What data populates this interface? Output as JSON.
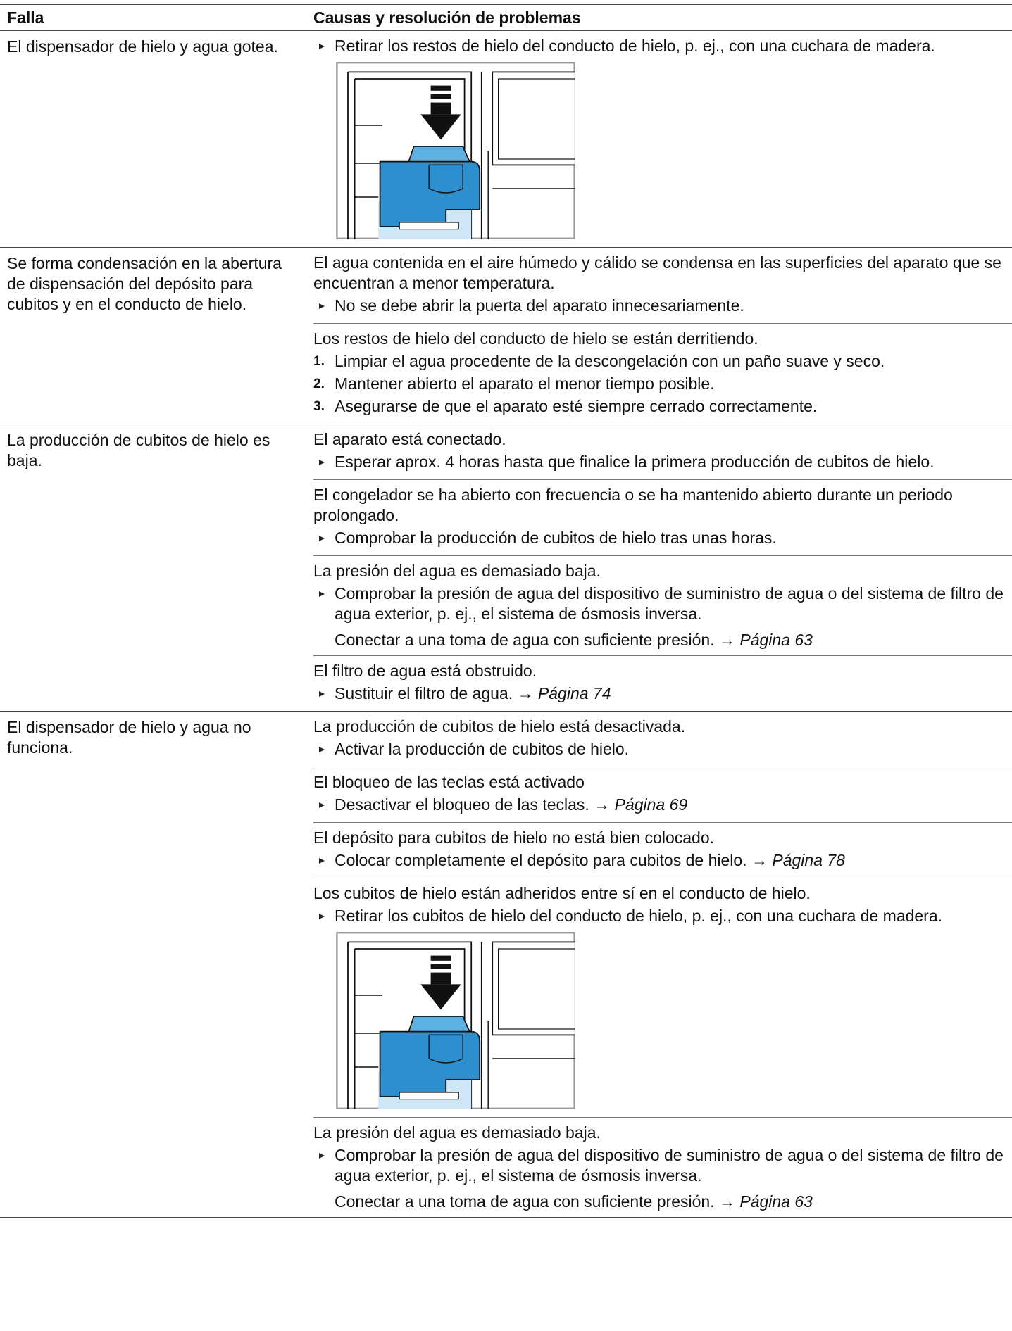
{
  "table": {
    "headers": [
      "Falla",
      "Causas y resolución de problemas"
    ],
    "rows": [
      {
        "fault": "El dispensador de hielo y agua gotea.",
        "causes": [
          {
            "actions": [
              "Retirar los restos de hielo del conducto de hielo, p. ej., con una cuchara de madera."
            ]
          }
        ]
      },
      {
        "fault": "Se forma condensación en la abertura de dispensación del depósito para cubitos y en el conducto de hielo.",
        "causes": [
          {
            "intro": "El agua contenida en el aire húmedo y cálido se condensa en las superficies del aparato que se encuentran a menor temperatura.",
            "actions": [
              "No se debe abrir la puerta del aparato innecesariamente."
            ]
          },
          {
            "intro": "Los restos de hielo del conducto de hielo se están derritiendo.",
            "steps": [
              {
                "number": "1.",
                "text": "Limpiar el agua procedente de la descongelación con un paño suave y seco."
              },
              {
                "number": "2.",
                "text": "Mantener abierto el aparato el menor tiempo posible."
              },
              {
                "number": "3.",
                "text": "Asegurarse de que el aparato esté siempre cerrado correctamente."
              }
            ]
          }
        ]
      },
      {
        "fault": "La producción de cubitos de hielo es baja.",
        "causes": [
          {
            "intro": "El aparato está conectado.",
            "actions": [
              "Esperar aprox. 4 horas hasta que finalice la primera producción de cubitos de hielo."
            ]
          },
          {
            "intro": "El congelador se ha abierto con frecuencia o se ha mantenido abierto durante un periodo prolongado.",
            "actions": [
              "Comprobar la producción de cubitos de hielo tras unas horas."
            ]
          },
          {
            "intro": "La presión del agua es demasiado baja.",
            "actions": [
              "Comprobar la presión de agua del dispositivo de suministro de agua o del sistema de filtro de agua exterior, p. ej., el sistema de ósmosis inversa."
            ],
            "note": {
              "text": "Conectar a una toma de agua con suficiente presión. →",
              "link": "Página 63"
            }
          },
          {
            "intro": "El filtro de agua está obstruido.",
            "actions": [
              {
                "text": "Sustituir el filtro de agua. →",
                "link": "Página 74"
              }
            ]
          }
        ]
      },
      {
        "fault": "El dispensador de hielo y agua no funciona.",
        "causes": [
          {
            "intro": "La producción de cubitos de hielo está desactivada.",
            "actions": [
              "Activar la producción de cubitos de hielo."
            ]
          },
          {
            "intro": "El bloqueo de las teclas está activado",
            "actions": [
              {
                "text": "Desactivar el bloqueo de las teclas. →",
                "link": "Página 69"
              }
            ]
          },
          {
            "intro": "El depósito para cubitos de hielo no está bien colocado.",
            "actions": [
              {
                "text": "Colocar completamente el depósito para cubitos de hielo. →",
                "link": "Página 78"
              }
            ]
          },
          {
            "intro": "Los cubitos de hielo están adheridos entre sí en el conducto de hielo.",
            "actions": [
              "Retirar los cubitos de hielo del conducto de hielo, p. ej., con una cuchara de madera."
            ]
          },
          {
            "intro": "La presión del agua es demasiado baja.",
            "actions": [
              "Comprobar la presión de agua del dispositivo de suministro de agua o del sistema de filtro de agua exterior, p. ej., el sistema de ósmosis inversa."
            ],
            "note": {
              "text": "Conectar a una toma de agua con suficiente presión. →",
              "link": "Página 63"
            }
          }
        ]
      }
    ]
  }
}
